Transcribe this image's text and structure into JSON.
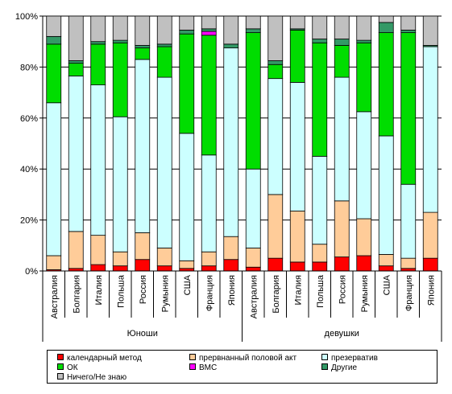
{
  "colors": {
    "calendar": "#ff0000",
    "interrupted": "#ffcc99",
    "condom": "#ccffff",
    "ok": "#00dd00",
    "iud": "#ff00ff",
    "other": "#339966",
    "dontknow": "#c0c0c0"
  },
  "chart_data": {
    "type": "bar",
    "stacked": true,
    "groups": [
      "Юноши",
      "девушки"
    ],
    "categories": [
      "Австралия",
      "Болгария",
      "Италия",
      "Польша",
      "Россия",
      "Румыния",
      "США",
      "Франция",
      "Япония",
      "Австралия",
      "Болгария",
      "Италия",
      "Польша",
      "Россия",
      "Румыния",
      "США",
      "Франция",
      "Япония"
    ],
    "group_of_category": [
      0,
      0,
      0,
      0,
      0,
      0,
      0,
      0,
      0,
      1,
      1,
      1,
      1,
      1,
      1,
      1,
      1,
      1
    ],
    "yticks": [
      "0%",
      "20%",
      "40%",
      "60%",
      "80%",
      "100%"
    ],
    "ylim": [
      0,
      100
    ],
    "legend_position": "bottom",
    "series": [
      {
        "name": "календарный метод",
        "color_key": "calendar",
        "values": [
          0.5,
          1,
          2.5,
          2,
          4.5,
          2,
          1,
          2,
          4.5,
          1.5,
          5,
          3.5,
          3.5,
          5.5,
          6,
          2,
          1,
          5
        ]
      },
      {
        "name": "прервнанный половой акт",
        "color_key": "interrupted",
        "values": [
          5.5,
          14.5,
          11.5,
          5.5,
          10.5,
          7,
          3,
          5.5,
          9,
          7.5,
          25,
          20,
          7,
          22,
          14.5,
          4.5,
          4,
          18
        ]
      },
      {
        "name": "презерватив",
        "color_key": "condom",
        "values": [
          60,
          61,
          59,
          53,
          68,
          67,
          50,
          38,
          74,
          31,
          45.5,
          50.5,
          34.5,
          48.5,
          42,
          46.5,
          29,
          65
        ]
      },
      {
        "name": "ОК",
        "color_key": "ok",
        "values": [
          23,
          5,
          16,
          29,
          4.5,
          12,
          39,
          47,
          0,
          53.5,
          5.5,
          20.5,
          44.5,
          12.5,
          27,
          40.5,
          59.5,
          0
        ]
      },
      {
        "name": "ВМС",
        "color_key": "iud",
        "values": [
          0,
          0,
          0,
          0,
          0,
          0,
          0,
          1.5,
          0,
          0,
          0,
          0,
          0,
          0,
          0,
          0,
          0,
          0
        ]
      },
      {
        "name": "Другие",
        "color_key": "other",
        "values": [
          3,
          1,
          1,
          1,
          1,
          1,
          1.5,
          1,
          1.5,
          1.5,
          1.5,
          0.5,
          1.5,
          2.5,
          1,
          4,
          1,
          0.5
        ]
      },
      {
        "name": "Ничего/Не знаю",
        "color_key": "dontknow",
        "values": [
          8,
          17.5,
          10,
          9.5,
          11.5,
          11,
          5.5,
          5,
          11,
          5,
          17.5,
          5,
          9,
          9,
          9.5,
          2.5,
          5.5,
          11.5
        ]
      }
    ]
  },
  "legend": [
    {
      "label": "календарный метод",
      "color_key": "calendar"
    },
    {
      "label": "прервнанный половой акт",
      "color_key": "interrupted"
    },
    {
      "label": "презерватив",
      "color_key": "condom"
    },
    {
      "label": "ОК",
      "color_key": "ok"
    },
    {
      "label": "ВМС",
      "color_key": "iud"
    },
    {
      "label": "Другие",
      "color_key": "other"
    },
    {
      "label": "Ничего/Не знаю",
      "color_key": "dontknow"
    }
  ]
}
